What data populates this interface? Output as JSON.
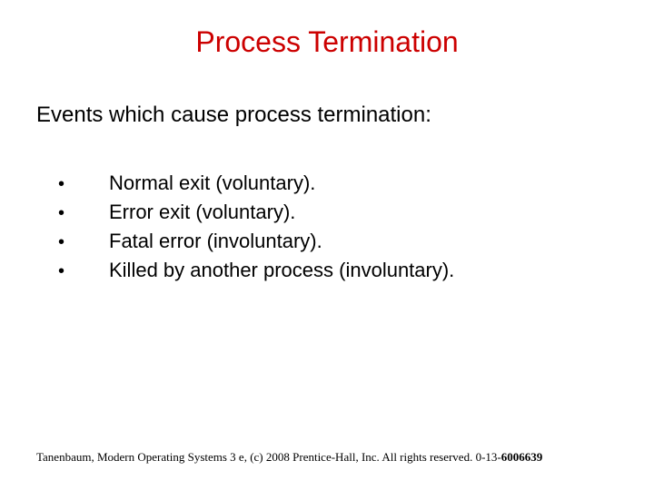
{
  "colors": {
    "title": "#cc0000",
    "body": "#000000",
    "background": "#ffffff"
  },
  "title": "Process Termination",
  "subtitle": "Events which cause process termination:",
  "bullets": [
    "Normal exit (voluntary).",
    "Error exit (voluntary).",
    "Fatal error (involuntary).",
    "Killed by another process (involuntary)."
  ],
  "footer_prefix": "Tanenbaum, Modern Operating Systems 3 e, (c) 2008 Prentice-Hall, Inc. All rights reserved. 0-13-",
  "footer_bold": "6006639",
  "typography": {
    "title_fontsize": 32,
    "subtitle_fontsize": 24,
    "bullet_fontsize": 22,
    "footer_fontsize": 13
  }
}
